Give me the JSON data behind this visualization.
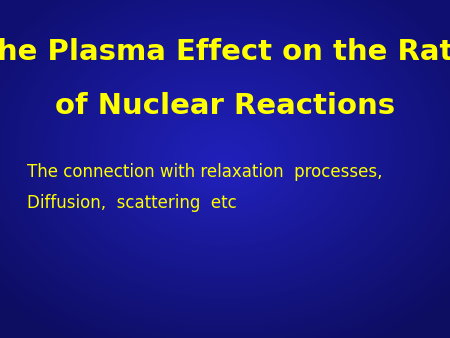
{
  "title_line1": "The Plasma Effect on the Rate",
  "title_line2": "of Nuclear Reactions",
  "subtitle_line1": "The connection with relaxation  processes,",
  "subtitle_line2": "Diffusion,  scattering  etc",
  "title_color": "#FFFF00",
  "subtitle_color": "#FFFF00",
  "title_fontsize": 21,
  "subtitle_fontsize": 12,
  "figsize": [
    4.5,
    3.38
  ],
  "dpi": 100
}
